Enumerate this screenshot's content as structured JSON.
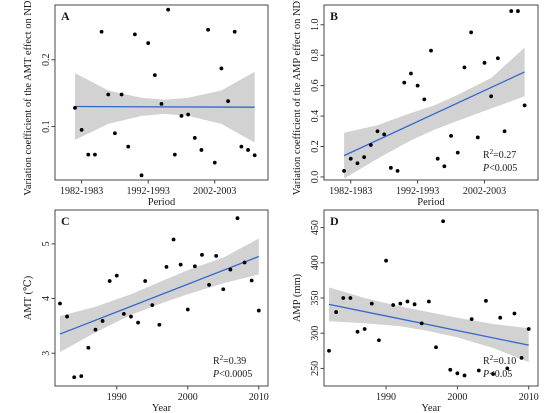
{
  "chart_data": [
    {
      "panel": "A",
      "type": "scatter",
      "xlabel": "Period",
      "ylabel": "Variation coefficient of the AMT effect on NDVI",
      "xticks": [
        "1982-1983",
        "1992-1993",
        "2002-2003"
      ],
      "x_tick_positions": [
        1,
        11,
        21
      ],
      "xlim": [
        -3,
        29
      ],
      "yticks": [
        "0.1",
        "0.2"
      ],
      "ytick_values": [
        0.1,
        0.2
      ],
      "ylim": [
        0.02,
        0.282
      ],
      "colors": {
        "point": "#000000",
        "fit": "#3366cc",
        "band": "#d2d2d2"
      },
      "points": {
        "x": [
          0,
          1,
          2,
          3,
          4,
          5,
          6,
          7,
          8,
          9,
          10,
          11,
          12,
          13,
          14,
          15,
          16,
          17,
          18,
          19,
          20,
          21,
          22,
          23,
          24,
          25,
          26,
          27
        ],
        "y": [
          0.128,
          0.095,
          0.058,
          0.058,
          0.242,
          0.148,
          0.09,
          0.148,
          0.07,
          0.238,
          0.027,
          0.225,
          0.177,
          0.134,
          0.275,
          0.058,
          0.116,
          0.118,
          0.083,
          0.065,
          0.245,
          0.046,
          0.187,
          0.138,
          0.242,
          0.07,
          0.065,
          0.057
        ]
      },
      "fit": {
        "x": [
          0,
          27
        ],
        "y": [
          0.13,
          0.129
        ]
      },
      "band": {
        "x": [
          0,
          5,
          10,
          13.5,
          17,
          22,
          27
        ],
        "upper": [
          0.18,
          0.154,
          0.143,
          0.14,
          0.143,
          0.154,
          0.182
        ],
        "lower": [
          0.08,
          0.104,
          0.116,
          0.119,
          0.116,
          0.104,
          0.076
        ]
      }
    },
    {
      "panel": "B",
      "type": "scatter",
      "xlabel": "Period",
      "ylabel": "Variation coefficient of the AMP effect on NDVI",
      "xticks": [
        "1982-1983",
        "1992-1993",
        "2002-2003"
      ],
      "x_tick_positions": [
        1,
        11,
        21
      ],
      "xlim": [
        -3,
        29
      ],
      "yticks": [
        "0.0",
        "0.2",
        "0.4",
        "0.6",
        "0.8",
        "1.0"
      ],
      "ytick_values": [
        0,
        0.2,
        0.4,
        0.6,
        0.8,
        1.0
      ],
      "ylim": [
        -0.02,
        1.13
      ],
      "annotation": {
        "r2": "R",
        "r2_sup": "2",
        "r2_value": "=0.27",
        "p_label": "P",
        "p_value": "<0.005"
      },
      "colors": {
        "point": "#000000",
        "fit": "#3366cc",
        "band": "#d2d2d2"
      },
      "points": {
        "x": [
          0,
          1,
          2,
          3,
          4,
          5,
          6,
          7,
          8,
          9,
          10,
          11,
          12,
          13,
          14,
          15,
          16,
          17,
          18,
          19,
          20,
          21,
          22,
          23,
          24,
          25,
          26,
          27
        ],
        "y": [
          0.04,
          0.12,
          0.09,
          0.13,
          0.21,
          0.3,
          0.28,
          0.06,
          0.04,
          0.62,
          0.68,
          0.6,
          0.51,
          0.83,
          0.12,
          0.07,
          0.27,
          0.16,
          0.72,
          0.95,
          0.26,
          0.75,
          0.53,
          0.78,
          0.3,
          1.09,
          1.09,
          0.47
        ]
      },
      "fit": {
        "x": [
          0,
          27
        ],
        "y": [
          0.14,
          0.69
        ]
      },
      "band": {
        "x": [
          0,
          5,
          10,
          13.5,
          17,
          22,
          27
        ],
        "upper": [
          0.29,
          0.34,
          0.42,
          0.47,
          0.54,
          0.65,
          0.85
        ],
        "lower": [
          -0.01,
          0.12,
          0.24,
          0.31,
          0.37,
          0.45,
          0.53
        ]
      }
    },
    {
      "panel": "C",
      "type": "scatter",
      "xlabel": "Year",
      "ylabel": "AMT (℃)",
      "xticks": [
        "1990",
        "2000",
        "2010"
      ],
      "x_tick_positions": [
        1990,
        2000,
        2010
      ],
      "xlim": [
        1981.3,
        2011.3
      ],
      "yticks": [
        "3",
        "4",
        "5"
      ],
      "ytick_values": [
        3,
        4,
        5
      ],
      "ylim": [
        2.4,
        5.62
      ],
      "annotation": {
        "r2": "R",
        "r2_sup": "2",
        "r2_value": "=0.39",
        "p_label": "P",
        "p_value": "<0.0005"
      },
      "colors": {
        "point": "#000000",
        "fit": "#3366cc",
        "band": "#d2d2d2"
      },
      "points": {
        "x": [
          1982,
          1983,
          1984,
          1985,
          1986,
          1987,
          1988,
          1989,
          1990,
          1991,
          1992,
          1993,
          1994,
          1995,
          1996,
          1997,
          1998,
          1999,
          2000,
          2001,
          2002,
          2003,
          2004,
          2005,
          2006,
          2007,
          2008,
          2009,
          2010
        ],
        "y": [
          3.91,
          3.67,
          2.56,
          2.58,
          3.1,
          3.43,
          3.59,
          4.32,
          4.42,
          3.72,
          3.67,
          3.56,
          4.32,
          3.88,
          3.52,
          4.58,
          5.08,
          4.62,
          3.8,
          4.59,
          4.8,
          4.25,
          4.78,
          4.17,
          4.53,
          5.47,
          4.66,
          4.33,
          3.78
        ]
      },
      "fit": {
        "x": [
          1982,
          2010
        ],
        "y": [
          3.35,
          4.77
        ]
      },
      "band": {
        "x": [
          1982,
          1987,
          1992,
          1996,
          2000,
          2005,
          2010
        ],
        "upper": [
          3.68,
          3.85,
          4.08,
          4.3,
          4.52,
          4.75,
          5.1
        ],
        "lower": [
          3.02,
          3.38,
          3.7,
          3.9,
          4.08,
          4.28,
          4.44
        ]
      }
    },
    {
      "panel": "D",
      "type": "scatter",
      "xlabel": "Year",
      "ylabel": "AMP (mm)",
      "xticks": [
        "1990",
        "2000",
        "2010"
      ],
      "x_tick_positions": [
        1990,
        2000,
        2010
      ],
      "xlim": [
        1981.3,
        2011.3
      ],
      "yticks": [
        "250",
        "300",
        "350",
        "400",
        "450"
      ],
      "ytick_values": [
        250,
        300,
        350,
        400,
        450
      ],
      "ylim": [
        225,
        475
      ],
      "annotation": {
        "r2": "R",
        "r2_sup": "2",
        "r2_value": "=0.10",
        "p_label": "P",
        "p_value": "<0.05"
      },
      "colors": {
        "point": "#000000",
        "fit": "#3366cc",
        "band": "#d2d2d2"
      },
      "points": {
        "x": [
          1982,
          1983,
          1984,
          1985,
          1986,
          1987,
          1988,
          1989,
          1990,
          1991,
          1992,
          1993,
          1994,
          1995,
          1996,
          1997,
          1998,
          1999,
          2000,
          2001,
          2002,
          2003,
          2004,
          2005,
          2006,
          2007,
          2008,
          2009,
          2010
        ],
        "y": [
          275,
          330,
          350,
          350,
          302,
          306,
          342,
          290,
          403,
          340,
          342,
          345,
          341,
          314,
          345,
          280,
          459,
          248,
          243,
          240,
          320,
          247,
          346,
          242,
          322,
          250,
          328,
          265,
          306
        ]
      },
      "fit": {
        "x": [
          1982,
          2010
        ],
        "y": [
          341,
          283
        ]
      },
      "band": {
        "x": [
          1982,
          1987,
          1992,
          1996,
          2000,
          2005,
          2010
        ],
        "upper": [
          365,
          350,
          338,
          330,
          322,
          313,
          307
        ],
        "lower": [
          317,
          314,
          310,
          303,
          294,
          279,
          259
        ]
      }
    }
  ]
}
